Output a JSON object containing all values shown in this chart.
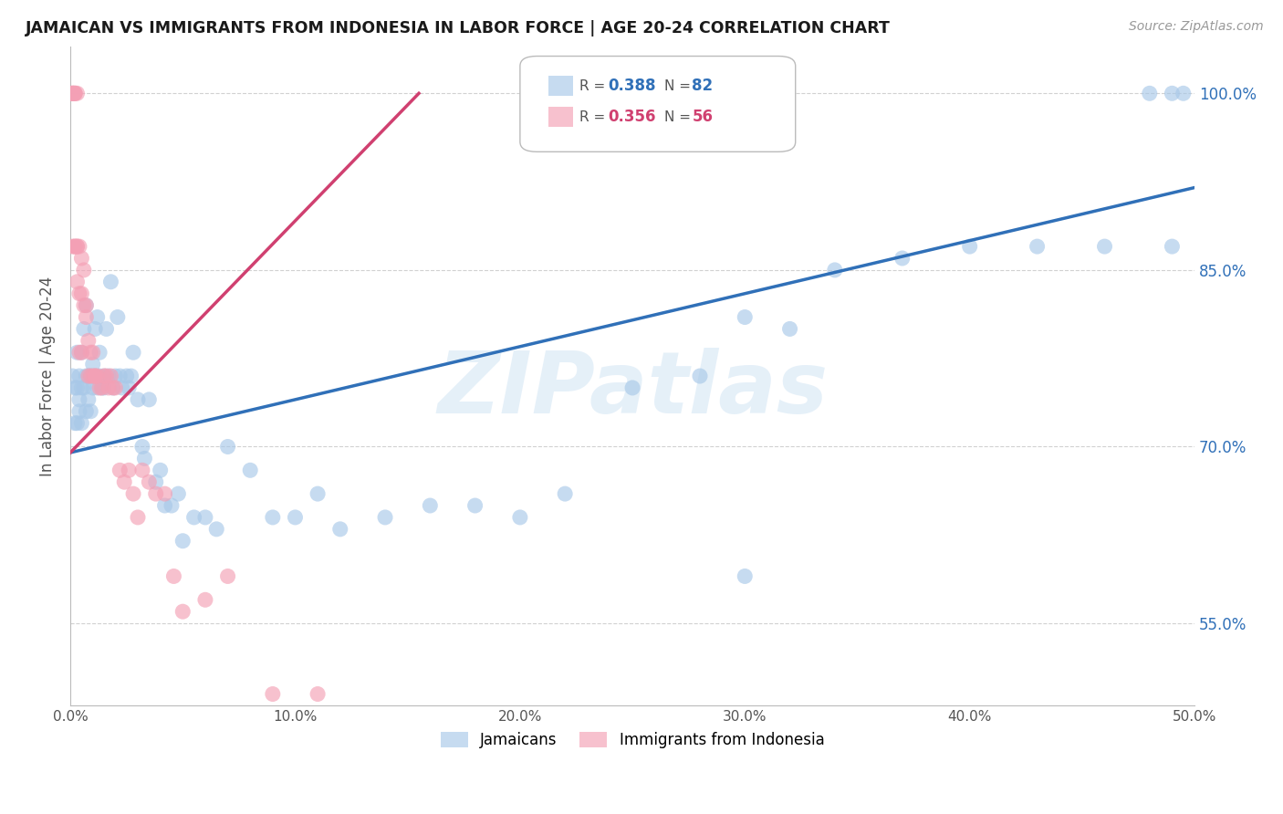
{
  "title": "JAMAICAN VS IMMIGRANTS FROM INDONESIA IN LABOR FORCE | AGE 20-24 CORRELATION CHART",
  "source": "Source: ZipAtlas.com",
  "ylabel": "In Labor Force | Age 20-24",
  "xlim": [
    0.0,
    0.5
  ],
  "ylim": [
    0.48,
    1.04
  ],
  "xticks": [
    0.0,
    0.1,
    0.2,
    0.3,
    0.4,
    0.5
  ],
  "yticks": [
    0.55,
    0.7,
    0.85,
    1.0
  ],
  "ytick_labels": [
    "55.0%",
    "70.0%",
    "85.0%",
    "100.0%"
  ],
  "xtick_labels": [
    "0.0%",
    "10.0%",
    "20.0%",
    "30.0%",
    "40.0%",
    "50.0%"
  ],
  "blue_color": "#a8c8e8",
  "pink_color": "#f4a0b5",
  "blue_line_color": "#3070b8",
  "pink_line_color": "#d04070",
  "watermark": "ZIPatlas",
  "blue_scatter_x": [
    0.001,
    0.002,
    0.002,
    0.003,
    0.003,
    0.003,
    0.004,
    0.004,
    0.004,
    0.005,
    0.005,
    0.005,
    0.006,
    0.006,
    0.007,
    0.007,
    0.007,
    0.008,
    0.008,
    0.009,
    0.009,
    0.01,
    0.01,
    0.011,
    0.011,
    0.012,
    0.012,
    0.013,
    0.013,
    0.014,
    0.015,
    0.015,
    0.016,
    0.017,
    0.018,
    0.019,
    0.02,
    0.021,
    0.022,
    0.023,
    0.025,
    0.026,
    0.027,
    0.028,
    0.03,
    0.032,
    0.033,
    0.035,
    0.038,
    0.04,
    0.042,
    0.045,
    0.048,
    0.05,
    0.055,
    0.06,
    0.065,
    0.07,
    0.08,
    0.09,
    0.1,
    0.11,
    0.12,
    0.14,
    0.16,
    0.18,
    0.2,
    0.22,
    0.25,
    0.28,
    0.3,
    0.32,
    0.34,
    0.37,
    0.4,
    0.43,
    0.46,
    0.48,
    0.49,
    0.495,
    0.3,
    0.49
  ],
  "blue_scatter_y": [
    0.76,
    0.75,
    0.72,
    0.78,
    0.75,
    0.72,
    0.76,
    0.74,
    0.73,
    0.78,
    0.75,
    0.72,
    0.8,
    0.75,
    0.82,
    0.76,
    0.73,
    0.76,
    0.74,
    0.76,
    0.73,
    0.77,
    0.75,
    0.8,
    0.76,
    0.81,
    0.75,
    0.78,
    0.76,
    0.75,
    0.76,
    0.75,
    0.8,
    0.76,
    0.84,
    0.75,
    0.76,
    0.81,
    0.76,
    0.75,
    0.76,
    0.75,
    0.76,
    0.78,
    0.74,
    0.7,
    0.69,
    0.74,
    0.67,
    0.68,
    0.65,
    0.65,
    0.66,
    0.62,
    0.64,
    0.64,
    0.63,
    0.7,
    0.68,
    0.64,
    0.64,
    0.66,
    0.63,
    0.64,
    0.65,
    0.65,
    0.64,
    0.66,
    0.75,
    0.76,
    0.81,
    0.8,
    0.85,
    0.86,
    0.87,
    0.87,
    0.87,
    1.0,
    1.0,
    1.0,
    0.59,
    0.87
  ],
  "pink_scatter_x": [
    0.001,
    0.001,
    0.001,
    0.001,
    0.001,
    0.002,
    0.002,
    0.002,
    0.002,
    0.002,
    0.003,
    0.003,
    0.003,
    0.003,
    0.004,
    0.004,
    0.004,
    0.005,
    0.005,
    0.005,
    0.006,
    0.006,
    0.007,
    0.007,
    0.008,
    0.008,
    0.009,
    0.009,
    0.01,
    0.01,
    0.011,
    0.011,
    0.012,
    0.013,
    0.014,
    0.015,
    0.016,
    0.017,
    0.018,
    0.019,
    0.02,
    0.022,
    0.024,
    0.026,
    0.028,
    0.03,
    0.032,
    0.035,
    0.038,
    0.042,
    0.046,
    0.05,
    0.06,
    0.07,
    0.09,
    0.11
  ],
  "pink_scatter_y": [
    1.0,
    1.0,
    1.0,
    1.0,
    0.87,
    1.0,
    1.0,
    1.0,
    0.87,
    0.87,
    1.0,
    0.87,
    0.87,
    0.84,
    0.87,
    0.83,
    0.78,
    0.86,
    0.83,
    0.78,
    0.85,
    0.82,
    0.82,
    0.81,
    0.79,
    0.76,
    0.78,
    0.76,
    0.78,
    0.76,
    0.76,
    0.76,
    0.76,
    0.75,
    0.75,
    0.76,
    0.76,
    0.75,
    0.76,
    0.75,
    0.75,
    0.68,
    0.67,
    0.68,
    0.66,
    0.64,
    0.68,
    0.67,
    0.66,
    0.66,
    0.59,
    0.56,
    0.57,
    0.59,
    0.49,
    0.49
  ],
  "blue_line_x": [
    0.0,
    0.5
  ],
  "blue_line_y": [
    0.695,
    0.92
  ],
  "pink_line_x": [
    0.0,
    0.155
  ],
  "pink_line_y": [
    0.695,
    1.0
  ]
}
